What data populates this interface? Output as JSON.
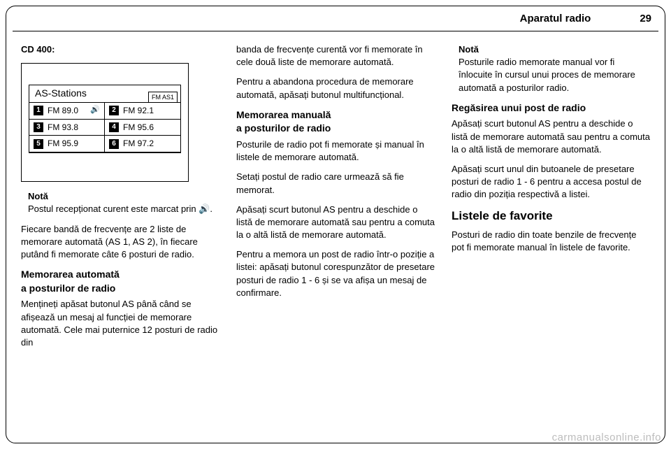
{
  "header": {
    "title": "Aparatul radio",
    "page": "29"
  },
  "watermark": "carmanualsonline.info",
  "display": {
    "title": "AS-Stations",
    "band_label": "FM AS1",
    "rows": [
      {
        "num": "1",
        "label": "FM   89.0",
        "icon": true
      },
      {
        "num": "2",
        "label": "FM   92.1",
        "icon": false
      },
      {
        "num": "3",
        "label": "FM   93.8",
        "icon": false
      },
      {
        "num": "4",
        "label": "FM   95.6",
        "icon": false
      },
      {
        "num": "5",
        "label": "FM   95.9",
        "icon": false
      },
      {
        "num": "6",
        "label": "FM   97.2",
        "icon": false
      }
    ]
  },
  "col1": {
    "cd_label": "CD 400:",
    "note_label": "Notă",
    "note_text": "Postul recepționat curent este marcat prin 🔊.",
    "para1": "Fiecare bandă de frecvențe are 2 liste de memorare automată (AS 1, AS 2), în fiecare putând fi memorate câte 6 posturi de radio.",
    "sub1a": "Memorarea automată",
    "sub1b": "a posturilor de radio",
    "para2": "Mențineți apăsat butonul AS până când se afișează un mesaj al funcției de memorare automată. Cele mai puternice 12 posturi de radio din"
  },
  "col2": {
    "para1": "banda de frecvențe curentă vor fi memorate în cele două liste de memorare automată.",
    "para2": "Pentru a abandona procedura de memorare automată, apăsați butonul multifuncțional.",
    "sub1a": "Memorarea manuală",
    "sub1b": "a posturilor de radio",
    "para3": "Posturile de radio pot fi memorate și manual în listele de memorare automată.",
    "para4": "Setați postul de radio care urmează să fie memorat.",
    "para5": "Apăsați scurt butonul AS pentru a deschide o listă de memorare automată sau pentru a comuta la o altă listă de memorare automată.",
    "para6": "Pentru a memora un post de radio într-o poziție a listei: apăsați butonul corespunzător de presetare posturi de radio 1 - 6 și se va afișa un mesaj de confirmare."
  },
  "col3": {
    "note_label": "Notă",
    "note_text": "Posturile radio memorate manual vor fi înlocuite în cursul unui proces de memorare automată a posturilor radio.",
    "sub1": "Regăsirea unui post de radio",
    "para1": "Apăsați scurt butonul AS pentru a deschide o listă de memorare automată sau pentru a comuta la o altă listă de memorare automată.",
    "para2": "Apăsați scurt unul din butoanele de presetare posturi de radio 1 - 6 pentru a accesa postul de radio din poziția respectivă a listei.",
    "sec1": "Listele de favorite",
    "para3": "Posturi de radio din toate benzile de frecvențe pot fi memorate manual în listele de favorite."
  }
}
